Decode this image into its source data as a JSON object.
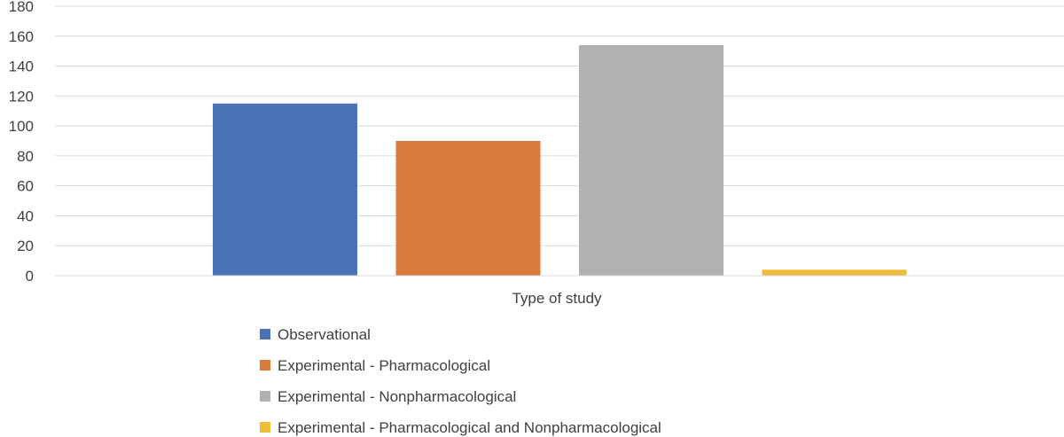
{
  "chart_data": {
    "type": "bar",
    "title": "",
    "xlabel": "Type of study",
    "ylabel": "",
    "ylim": [
      0,
      180
    ],
    "yticks": [
      0,
      20,
      40,
      60,
      80,
      100,
      120,
      140,
      160,
      180
    ],
    "grid": true,
    "legend_position": "bottom",
    "categories": [
      "Type of study"
    ],
    "series": [
      {
        "name": "Observational",
        "values": [
          115
        ],
        "color": "#4a72b5"
      },
      {
        "name": "Experimental - Pharmacological",
        "values": [
          90
        ],
        "color": "#db7b3b"
      },
      {
        "name": "Experimental - Nonpharmacological",
        "values": [
          154
        ],
        "color": "#b0b1b3"
      },
      {
        "name": "Experimental - Pharmacological and Nonpharmacological",
        "values": [
          4
        ],
        "color": "#edbd3a"
      }
    ]
  }
}
